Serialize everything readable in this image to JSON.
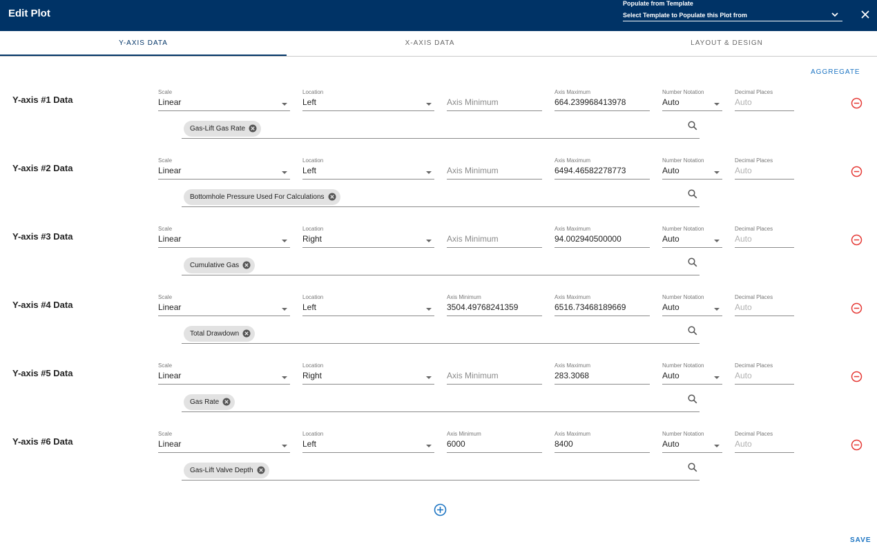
{
  "header": {
    "title": "Edit Plot",
    "template_label": "Populate from Template",
    "template_placeholder": "Select Template to Populate this Plot from"
  },
  "tabs": [
    {
      "label": "Y-AXIS DATA",
      "active": true
    },
    {
      "label": "X-AXIS DATA",
      "active": false
    },
    {
      "label": "LAYOUT & DESIGN",
      "active": false
    }
  ],
  "aggregate_label": "AGGREGATE",
  "field_labels": {
    "scale": "Scale",
    "location": "Location",
    "axis_min": "Axis Minimum",
    "axis_max": "Axis Maximum",
    "notation": "Number Notation",
    "decimals": "Decimal Places"
  },
  "rows": [
    {
      "title": "Y-axis #1 Data",
      "scale": "Linear",
      "location": "Left",
      "axis_min": "",
      "axis_max": "664.239968413978",
      "notation": "Auto",
      "decimals": "Auto",
      "series": "Gas-Lift Gas Rate"
    },
    {
      "title": "Y-axis #2 Data",
      "scale": "Linear",
      "location": "Left",
      "axis_min": "",
      "axis_max": "6494.46582278773",
      "notation": "Auto",
      "decimals": "Auto",
      "series": "Bottomhole Pressure Used For Calculations"
    },
    {
      "title": "Y-axis #3 Data",
      "scale": "Linear",
      "location": "Right",
      "axis_min": "",
      "axis_max": "94.002940500000",
      "notation": "Auto",
      "decimals": "Auto",
      "series": "Cumulative Gas"
    },
    {
      "title": "Y-axis #4 Data",
      "scale": "Linear",
      "location": "Left",
      "axis_min": "3504.49768241359",
      "axis_max": "6516.73468189669",
      "notation": "Auto",
      "decimals": "Auto",
      "series": "Total Drawdown"
    },
    {
      "title": "Y-axis #5 Data",
      "scale": "Linear",
      "location": "Right",
      "axis_min": "",
      "axis_max": "283.3068",
      "notation": "Auto",
      "decimals": "Auto",
      "series": "Gas Rate"
    },
    {
      "title": "Y-axis #6 Data",
      "scale": "Linear",
      "location": "Left",
      "axis_min": "6000",
      "axis_max": "8400",
      "notation": "Auto",
      "decimals": "Auto",
      "series": "Gas-Lift Valve Depth"
    }
  ],
  "save_label": "SAVE",
  "colors": {
    "header_bg": "#003366",
    "accent": "#1a73c2",
    "remove": "#e53935"
  }
}
